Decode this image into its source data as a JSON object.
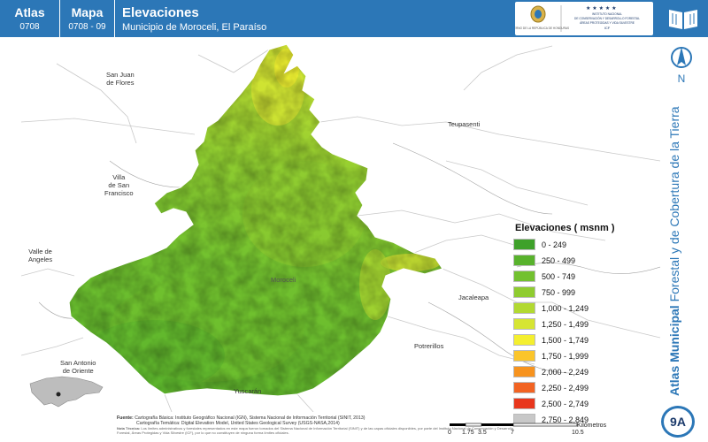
{
  "header": {
    "atlas_label": "Atlas",
    "atlas_code": "0708",
    "mapa_label": "Mapa",
    "mapa_code": "0708 - 09",
    "title": "Elevaciones",
    "subtitle": "Municipio de Moroceli, El Paraíso",
    "bg_color": "#2c77b7"
  },
  "logos": {
    "gov_text": "GOBIERNO DE LA REPÚBLICA DE HONDURAS",
    "icf_text": "INSTITUTO NACIONAL DE CONSERVACIÓN Y DESARROLLO FORESTAL, ÁREAS PROTEGIDAS Y VIDA SILVESTRE",
    "icf_short": "ICF",
    "book_icon": "book-icon"
  },
  "map": {
    "places": [
      {
        "name": "San Juan\nde Flores"
      },
      {
        "name": "Teupasenti"
      },
      {
        "name": "Villa\nde San\nFrancisco"
      },
      {
        "name": "Valle de\nAngeles"
      },
      {
        "name": "Moroceli"
      },
      {
        "name": "Jacaleapa"
      },
      {
        "name": "Potrerillos"
      },
      {
        "name": "San Antonio\nde Oriente"
      },
      {
        "name": "Yuscarán"
      }
    ]
  },
  "legend": {
    "title": "Elevaciones ( msnm )",
    "items": [
      {
        "label": "0 - 249",
        "color": "#3ea12a"
      },
      {
        "label": "250 - 499",
        "color": "#58b22c"
      },
      {
        "label": "500 - 749",
        "color": "#72c12f"
      },
      {
        "label": "750 - 999",
        "color": "#8fcc30"
      },
      {
        "label": "1,000 - 1,249",
        "color": "#b2d931"
      },
      {
        "label": "1,250 - 1,499",
        "color": "#d6e533"
      },
      {
        "label": "1,500 - 1,749",
        "color": "#f4ef2f"
      },
      {
        "label": "1,750 - 1,999",
        "color": "#fbc52a"
      },
      {
        "label": "2,000 - 2,249",
        "color": "#f7931e"
      },
      {
        "label": "2,250 - 2,499",
        "color": "#f26322"
      },
      {
        "label": "2,500 - 2,749",
        "color": "#e8361c"
      },
      {
        "label": "2,750 - 2,849",
        "color": "#c8c8c8"
      }
    ]
  },
  "footer": {
    "fuente_label": "Fuente:",
    "line1": "Cartografía Básica: Instituto Geográfico Nacional (IGN), Sistema Nacional de Información Territorial (SINIT, 2013)",
    "line2": "Cartografía Temática: Digital Elevation Model, United States Geological Survey (USGS-NASA,2014)",
    "nota_label": "Nota Técnica:",
    "nota": "Los límites administrativos y forestales representados en este mapa fueron tomados del Sistema Nacional de Información Territorial (SINIT) y de las capas oficiales disponibles, por parte del Instituto Nacional de Conservación y Desarrollo Forestal, Áreas Protegidas y Vida Silvestre (ICF), por lo que no constituyen de ninguna forma límites oficiales."
  },
  "scale": {
    "labels": [
      "0",
      "1.75",
      "3.5",
      "7",
      "10.5"
    ],
    "unit": "Kilómetros"
  },
  "side": {
    "vertical_bold": "Atlas Municipal",
    "vertical_rest": " Forestal y de Cobertura de la Tierra",
    "north_letter": "N",
    "page_badge": "9A"
  }
}
